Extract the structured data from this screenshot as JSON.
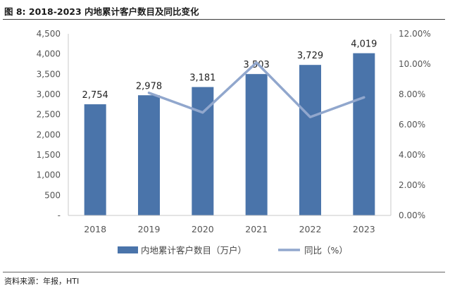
{
  "figure": {
    "title": "图 8:  2018-2023 内地累计客户数目及同比变化",
    "source": "资料来源：年报，HTI"
  },
  "colors": {
    "bar": "#4a74aa",
    "line": "#91a7cd",
    "axis": "#c8c8c8"
  },
  "chart_data": {
    "type": "bar",
    "categories": [
      "2018",
      "2019",
      "2020",
      "2021",
      "2022",
      "2023"
    ],
    "series": [
      {
        "name": "内地累计客户数目（万户）",
        "type": "bar",
        "axis": "left",
        "values": [
          2754,
          2978,
          3181,
          3503,
          3729,
          4019
        ],
        "labels": [
          "2,754",
          "2,978",
          "3,181",
          "3,503",
          "3,729",
          "4,019"
        ]
      },
      {
        "name": "同比（%）",
        "type": "line",
        "axis": "right",
        "values": [
          null,
          8.1,
          6.8,
          10.1,
          6.5,
          7.8
        ]
      }
    ],
    "y_left": {
      "min": 0,
      "max": 4500,
      "step": 500,
      "ticks": [
        "-",
        "500",
        "1,000",
        "1,500",
        "2,000",
        "2,500",
        "3,000",
        "3,500",
        "4,000",
        "4,500"
      ]
    },
    "y_right": {
      "min": 0,
      "max": 12,
      "step": 2,
      "ticks": [
        "0.00%",
        "2.00%",
        "4.00%",
        "6.00%",
        "8.00%",
        "10.00%",
        "12.00%"
      ]
    },
    "grid": false,
    "legend": "bottom"
  }
}
